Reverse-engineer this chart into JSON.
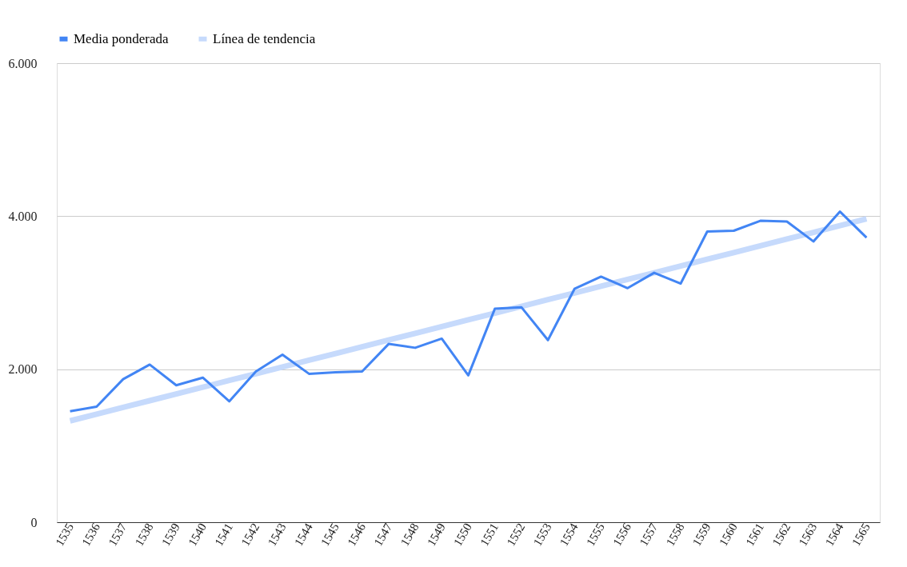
{
  "chart_data": {
    "type": "line",
    "categories": [
      "1535",
      "1536",
      "1537",
      "1538",
      "1539",
      "1540",
      "1541",
      "1542",
      "1543",
      "1544",
      "1545",
      "1546",
      "1547",
      "1548",
      "1549",
      "1550",
      "1551",
      "1552",
      "1553",
      "1554",
      "1555",
      "1556",
      "1557",
      "1558",
      "1559",
      "1560",
      "1561",
      "1562",
      "1563",
      "1564",
      "1565"
    ],
    "series": [
      {
        "name": "Media ponderada",
        "color": "#4285f4",
        "values": [
          1450,
          1510,
          1870,
          2060,
          1790,
          1890,
          1580,
          1970,
          2190,
          1940,
          1960,
          1970,
          2330,
          2280,
          2400,
          1920,
          2790,
          2810,
          2380,
          3050,
          3210,
          3060,
          3260,
          3120,
          3800,
          3810,
          3940,
          3930,
          3670,
          4060,
          3720
        ]
      },
      {
        "name": "Línea de tendencia",
        "color": "#c6dafc",
        "values": [
          1325,
          1413,
          1501,
          1589,
          1677,
          1765,
          1853,
          1941,
          2029,
          2117,
          2205,
          2293,
          2381,
          2469,
          2557,
          2645,
          2733,
          2821,
          2909,
          2997,
          3085,
          3173,
          3261,
          3349,
          3437,
          3525,
          3613,
          3701,
          3789,
          3877,
          3965
        ]
      }
    ],
    "ylim": [
      0,
      6000
    ],
    "yticks": [
      {
        "value": 0,
        "label": "0"
      },
      {
        "value": 2000,
        "label": "2.000"
      },
      {
        "value": 4000,
        "label": "4.000"
      },
      {
        "value": 6000,
        "label": "6.000"
      }
    ],
    "grid": "y",
    "legend": "top",
    "marker": "none",
    "line_style": "solid"
  }
}
